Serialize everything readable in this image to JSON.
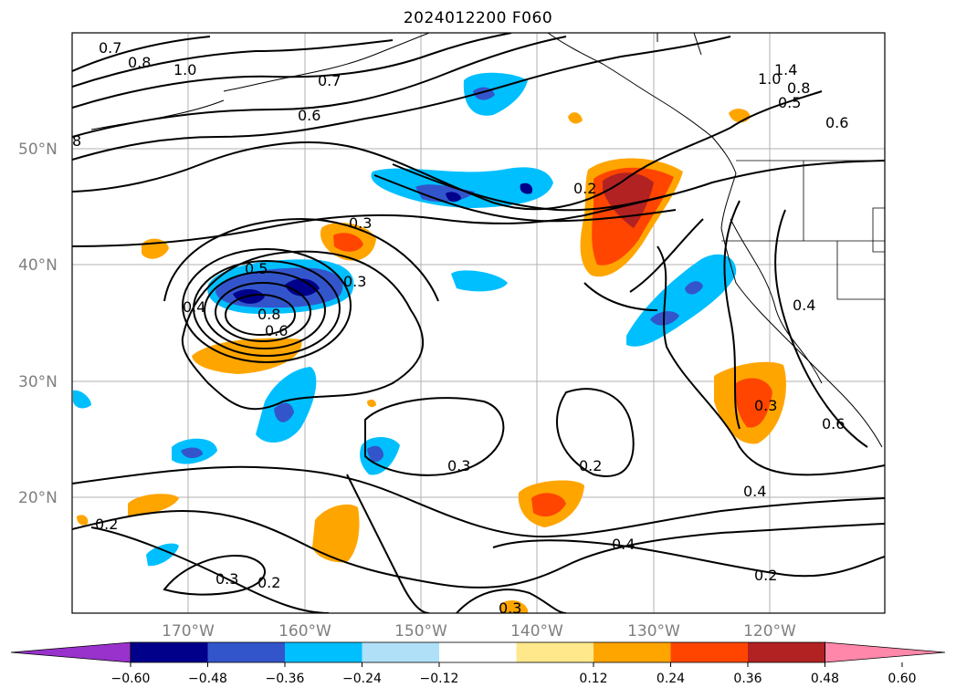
{
  "title": "2024012200 F060",
  "latitude_labels": [
    "50°N",
    "40°N",
    "30°N",
    "20°N"
  ],
  "longitude_labels": [
    "170°W",
    "160°W",
    "150°W",
    "140°W",
    "130°W",
    "120°W"
  ],
  "contour_labels": [
    "0.7",
    "0.8",
    "1.0",
    "0.7",
    "0.6",
    "8",
    "0.3",
    "0.3",
    "0.4",
    "0.5",
    "0.8",
    "0.6",
    "0.4",
    "0.3",
    "0.2",
    "0.2",
    "0.3",
    "0.2",
    "0.4",
    "0.2",
    "0.4",
    "0.6",
    "0.6",
    "0.5",
    "0.8",
    "1.4",
    "1.0",
    "0.3",
    "0.2",
    "0.3"
  ],
  "colorbar": {
    "ticks": [
      "−0.60",
      "−0.48",
      "−0.36",
      "−0.24",
      "−0.12",
      "0.12",
      "0.24",
      "0.36",
      "0.48",
      "0.60"
    ],
    "colors": [
      "#9932cc",
      "#00008b",
      "#3355cc",
      "#00bfff",
      "#b0e0f8",
      "#ffffff",
      "#ffe88c",
      "#ffa500",
      "#ff4500",
      "#b22222",
      "#ff88aa"
    ]
  }
}
